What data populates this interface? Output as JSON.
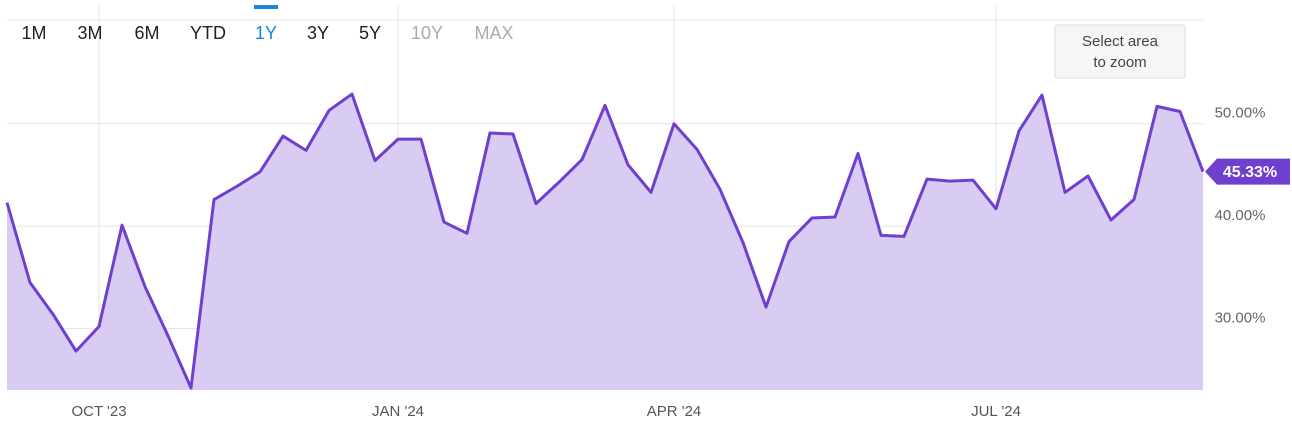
{
  "range_buttons": [
    {
      "label": "1M",
      "state": "enabled"
    },
    {
      "label": "3M",
      "state": "enabled"
    },
    {
      "label": "6M",
      "state": "enabled"
    },
    {
      "label": "YTD",
      "state": "enabled"
    },
    {
      "label": "1Y",
      "state": "active"
    },
    {
      "label": "3Y",
      "state": "enabled"
    },
    {
      "label": "5Y",
      "state": "enabled"
    },
    {
      "label": "10Y",
      "state": "disabled"
    },
    {
      "label": "MAX",
      "state": "disabled"
    }
  ],
  "zoom_hint": [
    "Select area",
    "to zoom"
  ],
  "chart_data": {
    "type": "area",
    "categories": [
      null,
      null,
      null,
      null,
      "OCT '23",
      null,
      null,
      null,
      null,
      null,
      null,
      null,
      null,
      null,
      null,
      null,
      null,
      "JAN '24",
      null,
      null,
      null,
      null,
      null,
      null,
      null,
      null,
      null,
      null,
      null,
      "APR '24",
      null,
      null,
      null,
      null,
      null,
      null,
      null,
      null,
      null,
      null,
      null,
      null,
      null,
      "JUL '24",
      null,
      null,
      null,
      null,
      null,
      null,
      null,
      null,
      null
    ],
    "series": [
      {
        "color": "#6f3fcf",
        "fill": "#d9ccf3",
        "values": [
          42.3,
          34.5,
          31.4,
          27.8,
          30.2,
          40.1,
          34.1,
          29.3,
          24.2,
          42.6,
          43.9,
          45.3,
          48.8,
          47.4,
          51.3,
          52.9,
          46.4,
          48.5,
          48.5,
          40.4,
          39.3,
          49.1,
          49.0,
          42.2,
          44.3,
          46.5,
          51.8,
          46.0,
          43.3,
          50.0,
          47.5,
          43.6,
          38.4,
          32.1,
          38.5,
          40.8,
          40.9,
          47.1,
          39.1,
          39.0,
          44.6,
          44.4,
          44.5,
          41.7,
          49.3,
          52.8,
          43.3,
          44.9,
          40.6,
          42.6,
          51.7,
          51.2,
          45.33
        ]
      }
    ],
    "ylim": [
      24,
      61.6
    ],
    "yticks": [
      {
        "value": 30,
        "label": "30.00%"
      },
      {
        "value": 40,
        "label": "40.00%"
      },
      {
        "value": 50,
        "label": "50.00%"
      }
    ],
    "grid": true,
    "last_value": {
      "value": 45.33,
      "label": "45.33%"
    }
  }
}
